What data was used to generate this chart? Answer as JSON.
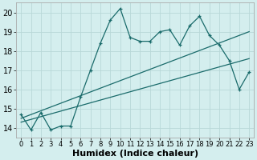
{
  "xlabel": "Humidex (Indice chaleur)",
  "xlim": [
    -0.5,
    23.5
  ],
  "ylim": [
    13.5,
    20.5
  ],
  "yticks": [
    14,
    15,
    16,
    17,
    18,
    19,
    20
  ],
  "xticks": [
    0,
    1,
    2,
    3,
    4,
    5,
    6,
    7,
    8,
    9,
    10,
    11,
    12,
    13,
    14,
    15,
    16,
    17,
    18,
    19,
    20,
    21,
    22,
    23
  ],
  "background_color": "#d4eeee",
  "grid_color": "#b8d8d8",
  "line_color": "#1a6b6b",
  "series1_x": [
    0,
    1,
    2,
    3,
    4,
    5,
    6,
    7,
    8,
    9,
    10,
    11,
    12,
    13,
    14,
    15,
    16,
    17,
    18,
    19,
    20,
    21,
    22,
    23
  ],
  "series1_y": [
    14.7,
    13.9,
    14.8,
    13.9,
    14.1,
    14.1,
    15.6,
    17.0,
    18.4,
    19.6,
    20.2,
    18.7,
    18.5,
    18.5,
    19.0,
    19.1,
    18.3,
    19.3,
    19.8,
    18.8,
    18.3,
    17.5,
    16.0,
    16.9
  ],
  "series2_x": [
    0,
    23
  ],
  "series2_y": [
    14.5,
    19.0
  ],
  "series3_x": [
    0,
    23
  ],
  "series3_y": [
    14.3,
    17.6
  ],
  "axis_fontsize": 7,
  "tick_fontsize": 6
}
